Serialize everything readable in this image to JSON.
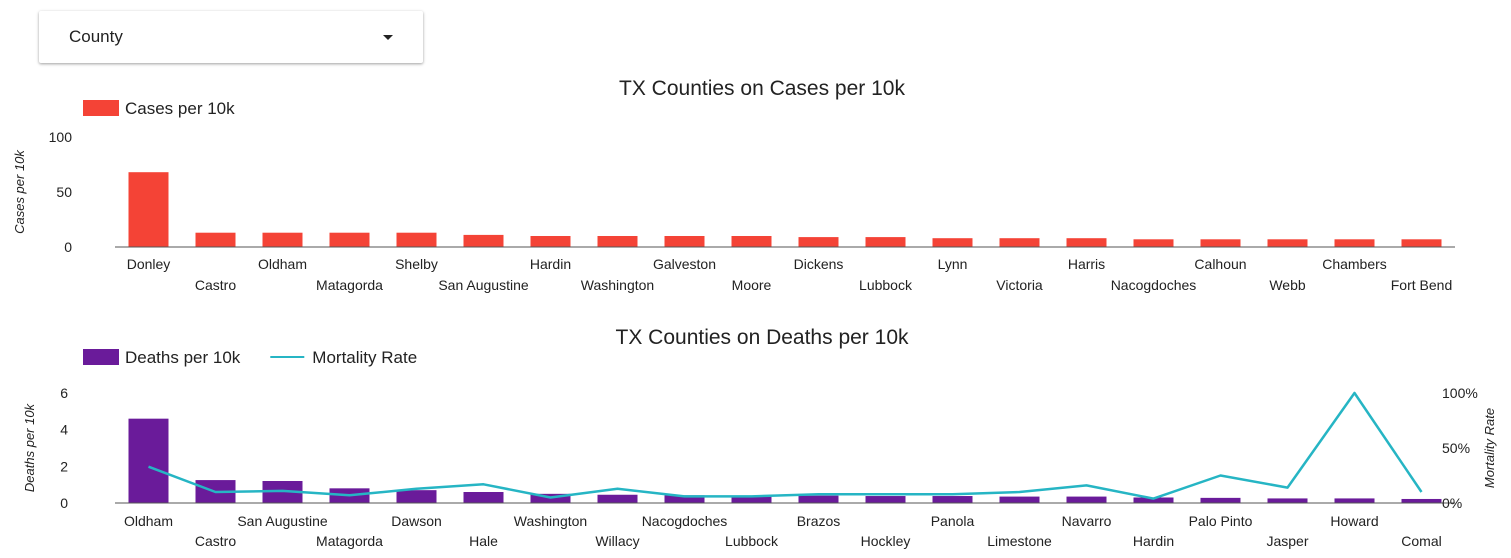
{
  "selector": {
    "label": "County"
  },
  "chart_data": [
    {
      "type": "bar",
      "title": "TX Counties on Cases per 10k",
      "categories": [
        "Donley",
        "Castro",
        "Oldham",
        "Matagorda",
        "Shelby",
        "San Augustine",
        "Hardin",
        "Washington",
        "Galveston",
        "Moore",
        "Dickens",
        "Lubbock",
        "Lynn",
        "Victoria",
        "Harris",
        "Nacogdoches",
        "Calhoun",
        "Webb",
        "Chambers",
        "Fort Bend"
      ],
      "series": [
        {
          "name": "Cases per 10k",
          "color": "#f44336",
          "values": [
            68,
            13,
            13,
            13,
            13,
            11,
            10,
            10,
            10,
            10,
            9,
            9,
            8,
            8,
            8,
            7,
            7,
            7,
            7,
            7
          ]
        }
      ],
      "ylabel": "Cases per 10k",
      "ylim": [
        0,
        100
      ],
      "yticks": [
        "0",
        "50",
        "100"
      ],
      "legend": "top-left",
      "grid": false
    },
    {
      "type": "bar",
      "title": "TX Counties on Deaths per 10k",
      "categories": [
        "Oldham",
        "Castro",
        "San Augustine",
        "Matagorda",
        "Dawson",
        "Hale",
        "Washington",
        "Willacy",
        "Nacogdoches",
        "Lubbock",
        "Brazos",
        "Hockley",
        "Panola",
        "Limestone",
        "Navarro",
        "Hardin",
        "Palo Pinto",
        "Jasper",
        "Howard",
        "Comal"
      ],
      "series": [
        {
          "name": "Deaths per 10k",
          "type": "bar",
          "axis": "left",
          "color": "#6a1b9a",
          "values": [
            4.6,
            1.25,
            1.2,
            0.8,
            0.7,
            0.6,
            0.5,
            0.45,
            0.42,
            0.4,
            0.4,
            0.38,
            0.38,
            0.35,
            0.35,
            0.3,
            0.28,
            0.25,
            0.25,
            0.22
          ]
        },
        {
          "name": "Mortality Rate",
          "type": "line",
          "axis": "right",
          "color": "#26b5c4",
          "values": [
            33,
            10,
            11,
            7,
            13,
            17,
            5,
            13,
            6,
            6,
            8,
            8,
            8,
            10,
            16,
            4,
            25,
            14,
            100,
            10
          ]
        }
      ],
      "ylabel": "Deaths per 10k",
      "ylim": [
        0,
        6
      ],
      "yticks": [
        "0",
        "2",
        "4",
        "6"
      ],
      "y2label": "Mortality Rate",
      "y2lim": [
        0,
        100
      ],
      "y2ticks": [
        "0%",
        "50%",
        "100%"
      ],
      "legend": "top-left",
      "grid": false
    }
  ]
}
